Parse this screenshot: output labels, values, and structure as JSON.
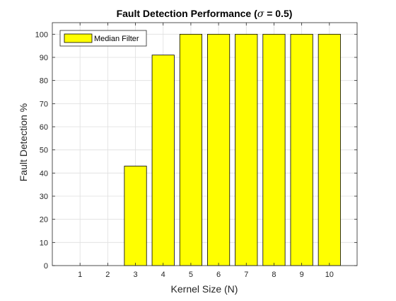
{
  "chart_data": {
    "type": "bar",
    "title": {
      "prefix": "Fault Detection Performance (",
      "symbol": "σ",
      "suffix": " = 0.5)"
    },
    "xlabel": "Kernel Size (N)",
    "ylabel": "Fault Detection %",
    "categories": [
      1,
      2,
      3,
      4,
      5,
      6,
      7,
      8,
      9,
      10
    ],
    "series": [
      {
        "name": "Median Filter",
        "values": [
          0,
          0,
          43,
          91,
          100,
          100,
          100,
          100,
          100,
          100
        ],
        "color": "#ffff00",
        "edge_color": "#000000"
      }
    ],
    "xlim": [
      0,
      11
    ],
    "ylim": [
      0,
      105
    ],
    "yticks": [
      0,
      10,
      20,
      30,
      40,
      50,
      60,
      70,
      80,
      90,
      100
    ],
    "xticks": [
      1,
      2,
      3,
      4,
      5,
      6,
      7,
      8,
      9,
      10
    ],
    "grid": true,
    "legend_position": "top-left"
  }
}
